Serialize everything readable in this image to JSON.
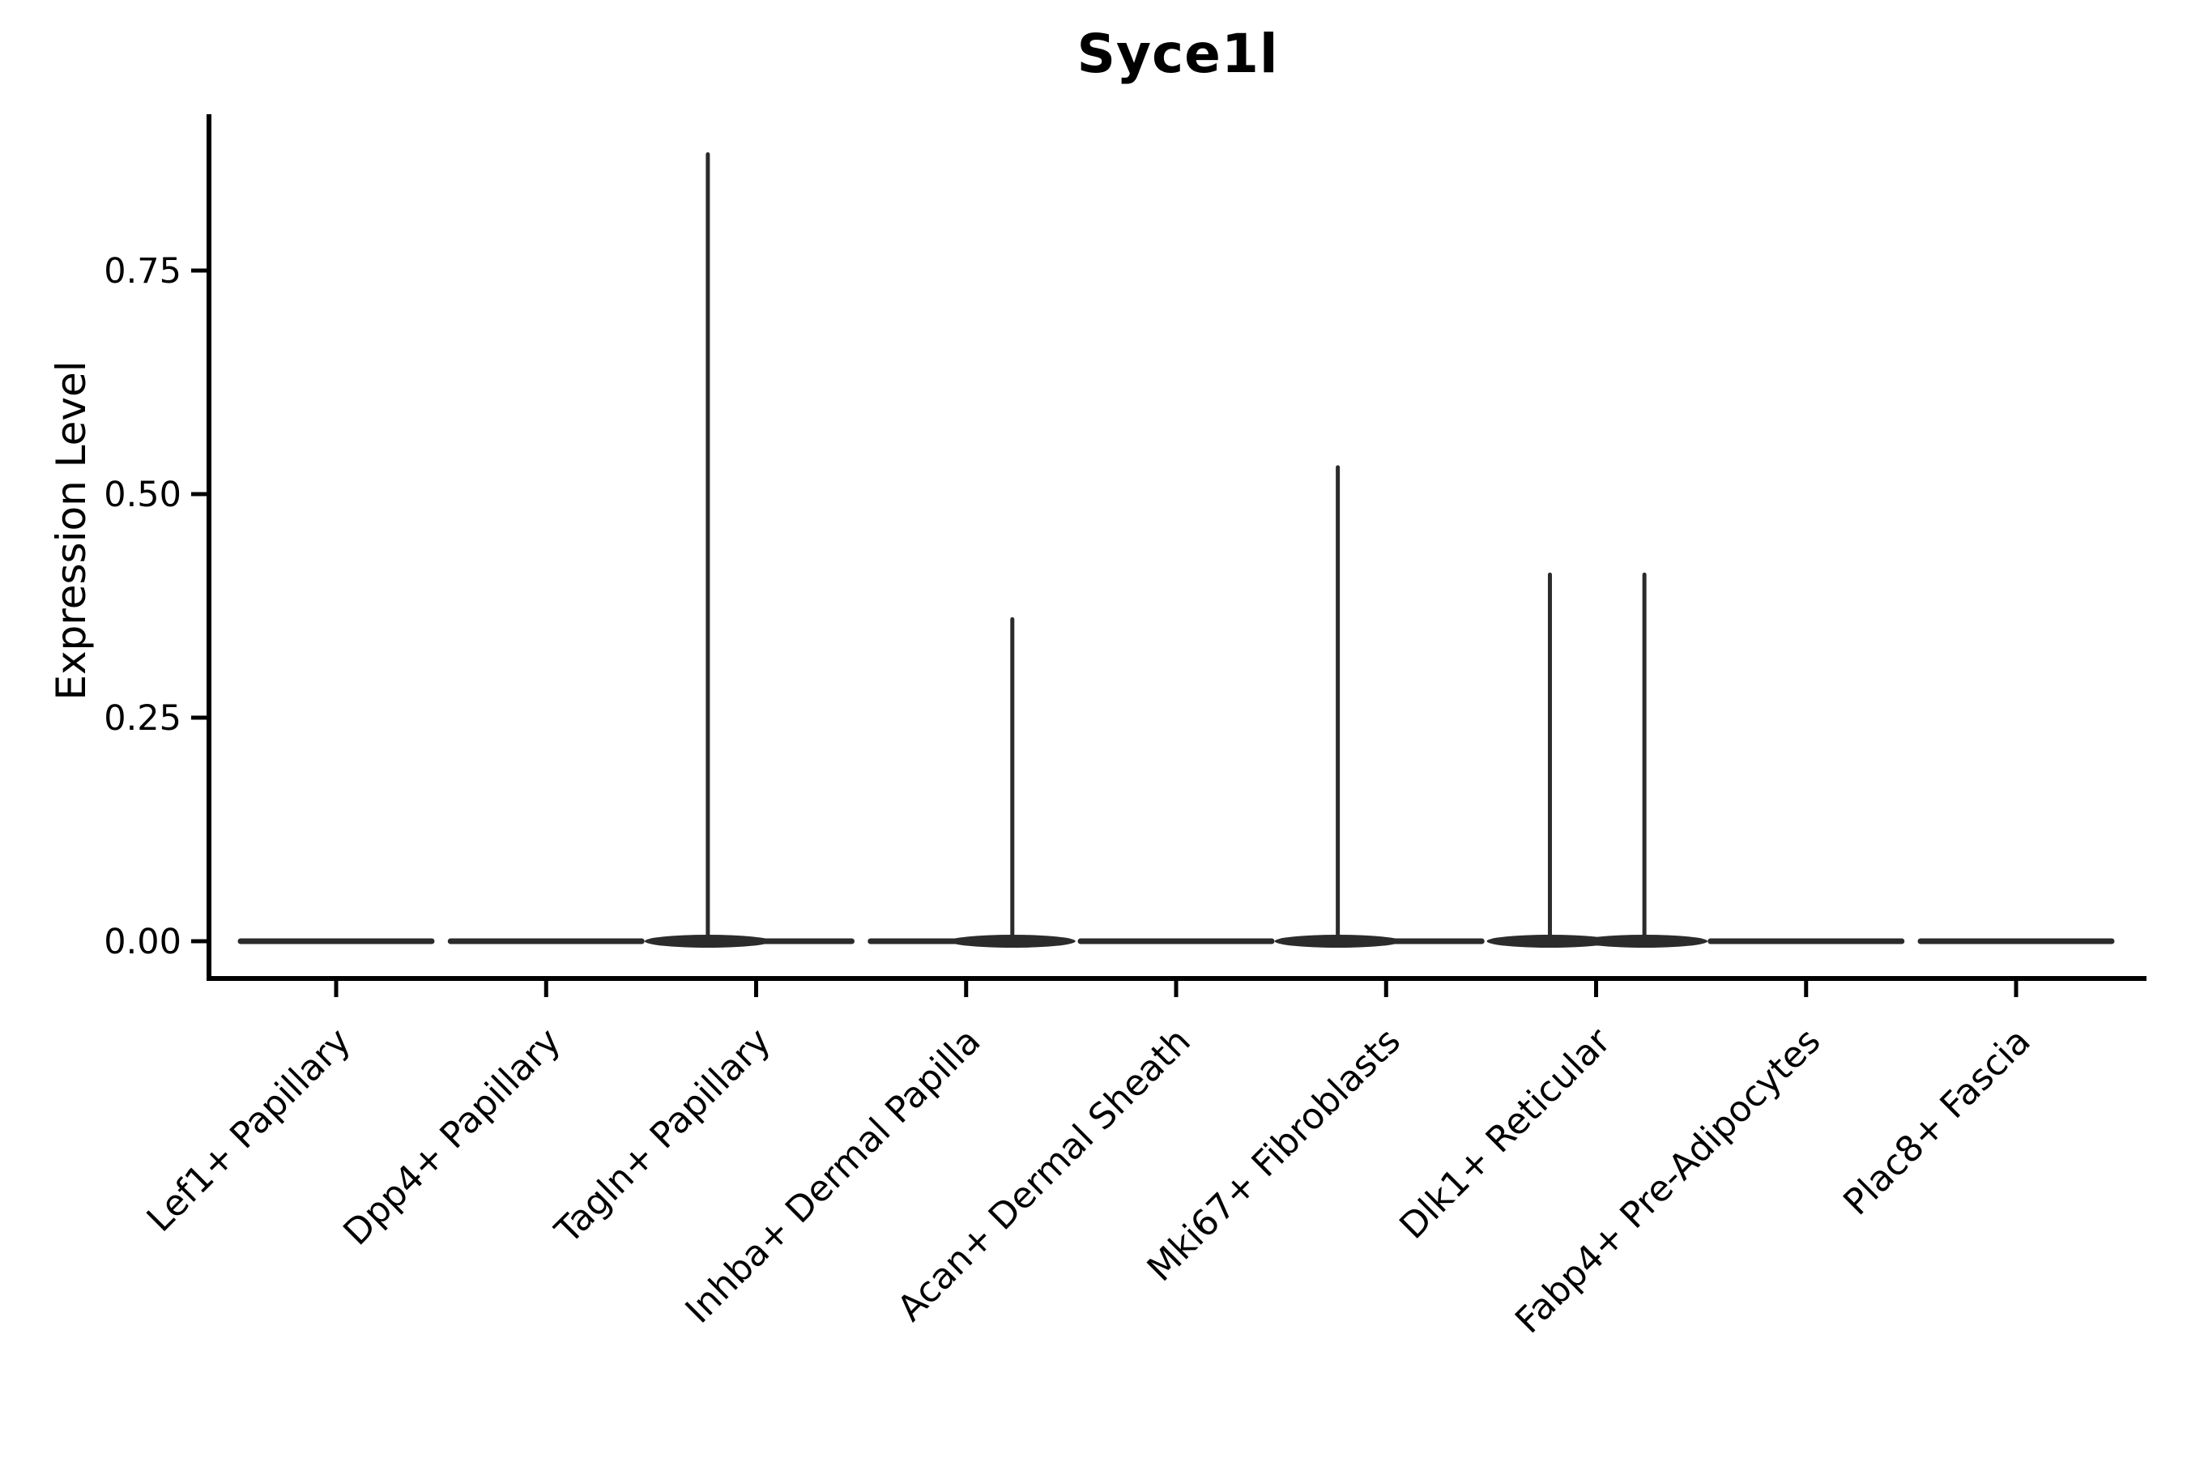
{
  "chart_data": {
    "type": "violin",
    "title": "Syce1l",
    "ylabel": "Expression Level",
    "xlabel": "",
    "legend": "none",
    "grid": false,
    "background": "#ffffff",
    "ytick_labels": [
      "0.00",
      "0.25",
      "0.50",
      "0.75"
    ],
    "ytick_values": [
      0.0,
      0.25,
      0.5,
      0.75
    ],
    "ylim": [
      -0.043,
      0.925
    ],
    "categories": [
      "Lef1+ Papillary",
      "Dpp4+ Papillary",
      "Tagln+ Papillary",
      "Inhba+ Dermal Papilla",
      "Acan+ Dermal Sheath",
      "Mki67+ Fibroblasts",
      "Dlk1+ Reticular",
      "Fabp4+ Pre-Adipocytes",
      "Plac8+ Fascia"
    ],
    "violins": [
      {
        "category": "Lef1+ Papillary",
        "base_value": 0,
        "max_value": 0,
        "spikes": []
      },
      {
        "category": "Dpp4+ Papillary",
        "base_value": 0,
        "max_value": 0,
        "spikes": []
      },
      {
        "category": "Tagln+ Papillary",
        "base_value": 0,
        "max_value": 0.88,
        "spikes": [
          {
            "value": 0.88,
            "offset_frac": -0.23
          }
        ]
      },
      {
        "category": "Inhba+ Dermal Papilla",
        "base_value": 0,
        "max_value": 0.36,
        "spikes": [
          {
            "value": 0.36,
            "offset_frac": 0.22
          }
        ]
      },
      {
        "category": "Acan+ Dermal Sheath",
        "base_value": 0,
        "max_value": 0,
        "spikes": []
      },
      {
        "category": "Mki67+ Fibroblasts",
        "base_value": 0,
        "max_value": 0.53,
        "spikes": [
          {
            "value": 0.53,
            "offset_frac": -0.23
          }
        ]
      },
      {
        "category": "Dlk1+ Reticular",
        "base_value": 0,
        "max_value": 0.41,
        "spikes": [
          {
            "value": 0.41,
            "offset_frac": -0.22
          },
          {
            "value": 0.41,
            "offset_frac": 0.23
          }
        ]
      },
      {
        "category": "Fabp4+ Pre-Adipocytes",
        "base_value": 0,
        "max_value": 0,
        "spikes": []
      },
      {
        "category": "Plac8+ Fascia",
        "base_value": 0,
        "max_value": 0,
        "spikes": []
      }
    ],
    "colors": {
      "violin_line": "#2b2b2b",
      "axis": "#000000",
      "text": "#000000"
    }
  }
}
